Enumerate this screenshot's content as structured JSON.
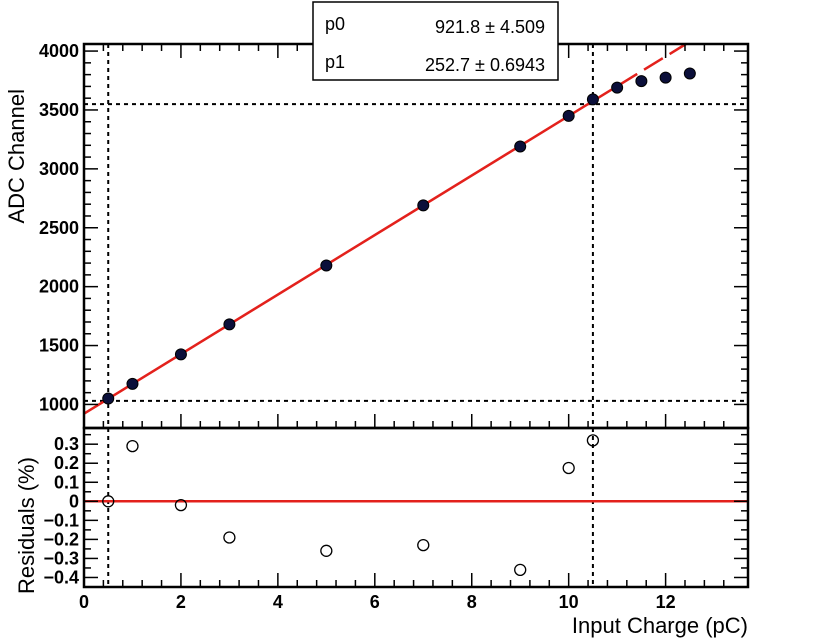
{
  "stats_box": {
    "rows": [
      {
        "name": "p0",
        "value": "921.8 ± 4.509"
      },
      {
        "name": "p1",
        "value": "252.7 ± 0.6943"
      }
    ]
  },
  "chart_data": [
    {
      "type": "scatter",
      "panel": "top",
      "ylabel": "ADC Channel",
      "xlim": [
        0,
        13.7
      ],
      "ylim": [
        800,
        4060
      ],
      "yticks": [
        1000,
        1500,
        2000,
        2500,
        3000,
        3500,
        4000
      ],
      "series": [
        {
          "x": [
            0.5,
            1,
            2,
            3,
            5,
            7,
            9,
            10,
            10.5,
            11,
            11.5,
            12,
            12.5
          ],
          "y": [
            1050,
            1175,
            1425,
            1680,
            2180,
            2690,
            3190,
            3450,
            3590,
            3690,
            3745,
            3775,
            3810
          ]
        }
      ],
      "fit_line": {
        "p0": 921.8,
        "p1": 252.7,
        "x_range": [
          0,
          12.5
        ],
        "solid_until": 10.5
      },
      "guide_lines": {
        "vertical": [
          0.5,
          10.5
        ],
        "horizontal": [
          1030,
          3550
        ]
      }
    },
    {
      "type": "scatter",
      "panel": "bottom",
      "xlabel": "Input Charge (pC)",
      "ylabel": "Residuals (%)",
      "xlim": [
        0,
        13.7
      ],
      "ylim": [
        -0.45,
        0.385
      ],
      "xticks": [
        0,
        2,
        4,
        6,
        8,
        10,
        12
      ],
      "yticks": [
        0.3,
        0.2,
        0.1,
        0,
        -0.1,
        -0.2,
        -0.3,
        -0.4
      ],
      "ytick_labels": [
        "0.3",
        "0.2",
        "0.1",
        "0",
        "−0.1",
        "−0.2",
        "−0.3",
        "−0.4"
      ],
      "series": [
        {
          "x": [
            0.5,
            1,
            2,
            3,
            5,
            7,
            9,
            10,
            10.5
          ],
          "y": [
            0.0,
            0.29,
            -0.02,
            -0.19,
            -0.26,
            -0.23,
            -0.36,
            0.175,
            0.32
          ]
        }
      ],
      "reference_line": 0,
      "guide_lines": {
        "vertical": [
          0.5,
          10.5
        ]
      }
    }
  ]
}
